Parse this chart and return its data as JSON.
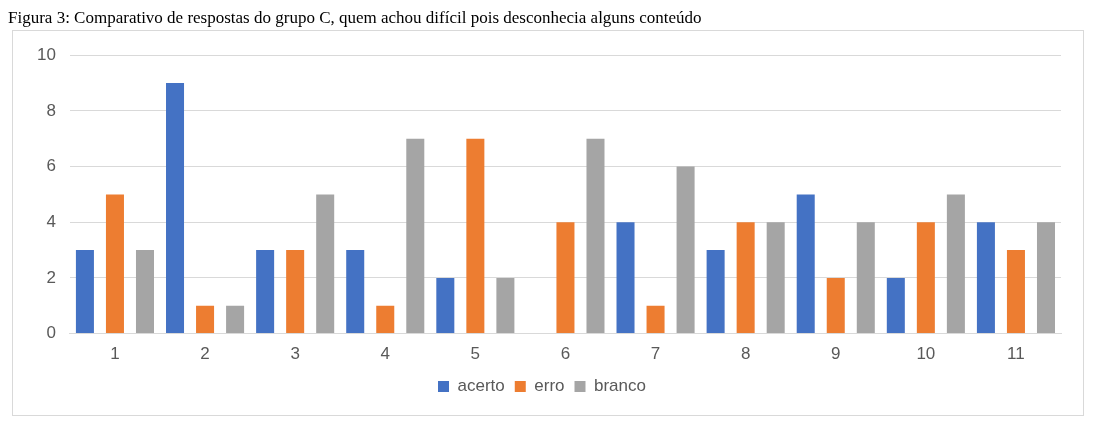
{
  "chart_data": {
    "type": "bar",
    "title": "Figura 3: Comparativo de respostas do grupo C, quem achou difícil pois desconhecia alguns conteúdo",
    "categories": [
      "1",
      "2",
      "3",
      "4",
      "5",
      "6",
      "7",
      "8",
      "9",
      "10",
      "11"
    ],
    "series": [
      {
        "name": "acerto",
        "color": "#4472c4",
        "values": [
          3,
          9,
          3,
          3,
          2,
          0,
          4,
          3,
          5,
          2,
          4
        ]
      },
      {
        "name": "erro",
        "color": "#ed7d31",
        "values": [
          5,
          1,
          3,
          1,
          7,
          4,
          1,
          4,
          2,
          4,
          3
        ]
      },
      {
        "name": "branco",
        "color": "#a5a5a5",
        "values": [
          3,
          1,
          5,
          7,
          2,
          7,
          6,
          4,
          4,
          5,
          4
        ]
      }
    ],
    "ylim": [
      0,
      10
    ],
    "yticks": [
      0,
      2,
      4,
      6,
      8,
      10
    ],
    "grid": "y",
    "legend": "bottom"
  }
}
